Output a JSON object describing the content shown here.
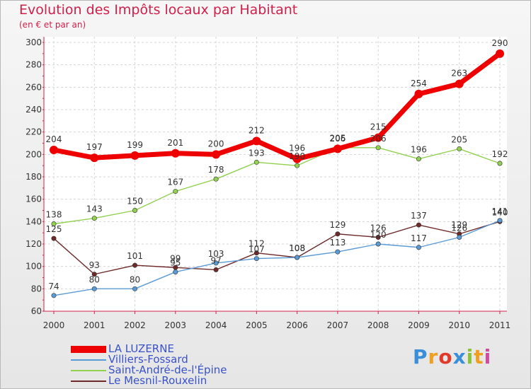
{
  "header": {
    "title": "Evolution des Impôts locaux par Habitant",
    "subtitle": "(en € et par an)"
  },
  "logo": {
    "text": "Proxiti",
    "colors": [
      "#3a8fd8",
      "#f0a020",
      "#e23a2a",
      "#3a8fd8",
      "#8ac23a",
      "#f0a020",
      "#d04aa0"
    ]
  },
  "chart_data": {
    "type": "line",
    "x": [
      "2000",
      "2001",
      "2002",
      "2003",
      "2004",
      "2005",
      "2006",
      "2007",
      "2008",
      "2009",
      "2010",
      "2011"
    ],
    "ylim": [
      60,
      300
    ],
    "yticks": [
      60,
      80,
      100,
      120,
      140,
      160,
      180,
      200,
      220,
      240,
      260,
      280,
      300
    ],
    "grid": true,
    "legend_position": "bottom-left",
    "series": [
      {
        "name": "LA LUZERNE",
        "color": "#ee0000",
        "values": [
          204,
          197,
          199,
          201,
          200,
          212,
          196,
          205,
          215,
          254,
          263,
          290
        ]
      },
      {
        "name": "Villiers-Fossard",
        "color": "#5b9bd5",
        "values": [
          74,
          80,
          80,
          95,
          103,
          107,
          108,
          113,
          120,
          117,
          126,
          141
        ]
      },
      {
        "name": "Saint-André-de-l'Épine",
        "color": "#92d050",
        "values": [
          138,
          143,
          150,
          167,
          178,
          193,
          190,
          206,
          206,
          196,
          205,
          192
        ]
      },
      {
        "name": "Le Mesnil-Rouxelin",
        "color": "#6e2a2a",
        "values": [
          125,
          93,
          101,
          99,
          97,
          112,
          108,
          129,
          126,
          137,
          129,
          140
        ]
      }
    ]
  }
}
